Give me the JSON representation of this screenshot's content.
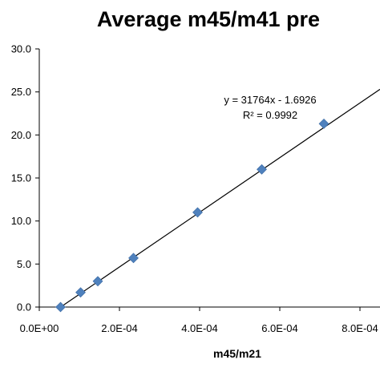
{
  "chart_data": {
    "type": "scatter",
    "title": "Average m45/m41 pre",
    "xlabel": "m45/m21",
    "ylabel": "",
    "xlim": [
      0,
      0.0008
    ],
    "ylim": [
      0,
      30
    ],
    "x_ticks": [
      0,
      0.0002,
      0.0004,
      0.0006,
      0.0008
    ],
    "x_tick_labels": [
      "0.0E+00",
      "2.0E-04",
      "4.0E-04",
      "6.0E-04",
      "8.0E-04"
    ],
    "y_ticks": [
      0,
      5,
      10,
      15,
      20,
      25,
      30
    ],
    "y_tick_labels": [
      "0.0",
      "5.0",
      "10.0",
      "15.0",
      "20.0",
      "25.0",
      "30.0"
    ],
    "grid": false,
    "series": [
      {
        "marker": "diamond",
        "color": "#4f81bd",
        "x": [
          5.3e-05,
          0.000103,
          0.000146,
          0.000235,
          0.000395,
          0.000555,
          0.00071
        ],
        "y": [
          0.0,
          1.7,
          3.0,
          5.7,
          11.0,
          16.0,
          21.3
        ]
      }
    ],
    "trendline": {
      "type": "linear",
      "slope": 31764,
      "intercept": -1.6926,
      "color": "#000000",
      "equation_label": "y = 31764x - 1.6926",
      "r2_label": "R² = 0.9992"
    }
  }
}
